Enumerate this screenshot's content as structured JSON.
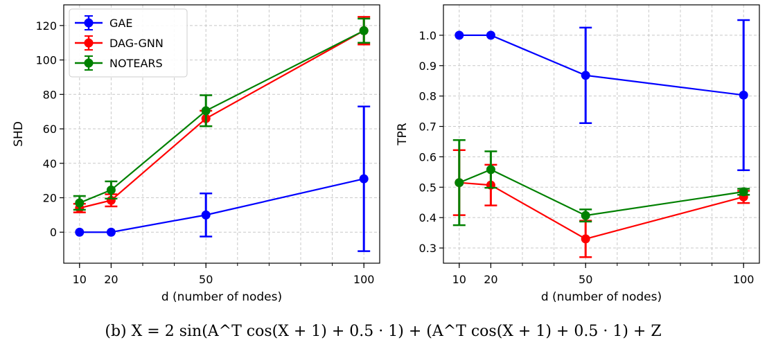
{
  "caption": "(b) X = 2 sin(A^T cos(X + 1) + 0.5 · 1) + (A^T cos(X + 1) + 0.5 · 1) + Z",
  "chart_data": [
    {
      "type": "line",
      "xlabel": "d (number of nodes)",
      "ylabel": "SHD",
      "x": [
        10,
        20,
        50,
        100
      ],
      "xticks": [
        10,
        20,
        50,
        100
      ],
      "xlim": [
        5,
        105
      ],
      "ylim": [
        -18,
        132
      ],
      "yticks": [
        0,
        20,
        40,
        60,
        80,
        100,
        120
      ],
      "grid": true,
      "legend": "top-left",
      "series": [
        {
          "name": "GAE",
          "color": "#0000ff",
          "values": [
            0,
            0,
            10,
            31
          ],
          "errors": [
            0,
            0,
            12.5,
            42
          ]
        },
        {
          "name": "DAG-GNN",
          "color": "#ff0000",
          "values": [
            14,
            18.5,
            66,
            117
          ],
          "errors": [
            2.5,
            3.5,
            4.5,
            8
          ]
        },
        {
          "name": "NOTEARS",
          "color": "#008000",
          "values": [
            17,
            24.5,
            70.5,
            117
          ],
          "errors": [
            4,
            5,
            9,
            7
          ]
        }
      ]
    },
    {
      "type": "line",
      "xlabel": "d (number of nodes)",
      "ylabel": "TPR",
      "x": [
        10,
        20,
        50,
        100
      ],
      "xticks": [
        10,
        20,
        50,
        100
      ],
      "xlim": [
        5,
        105
      ],
      "ylim": [
        0.25,
        1.1
      ],
      "yticks": [
        0.3,
        0.4,
        0.5,
        0.6,
        0.7,
        0.8,
        0.9,
        1.0
      ],
      "grid": true,
      "series": [
        {
          "name": "GAE",
          "color": "#0000ff",
          "values": [
            1.0,
            1.0,
            0.868,
            0.803
          ],
          "errors": [
            0,
            0,
            0.157,
            0.247
          ]
        },
        {
          "name": "DAG-GNN",
          "color": "#ff0000",
          "values": [
            0.515,
            0.507,
            0.33,
            0.468
          ],
          "errors": [
            0.107,
            0.067,
            0.06,
            0.02
          ]
        },
        {
          "name": "NOTEARS",
          "color": "#008000",
          "values": [
            0.515,
            0.558,
            0.407,
            0.485
          ],
          "errors": [
            0.14,
            0.06,
            0.02,
            0.01
          ]
        }
      ]
    }
  ]
}
